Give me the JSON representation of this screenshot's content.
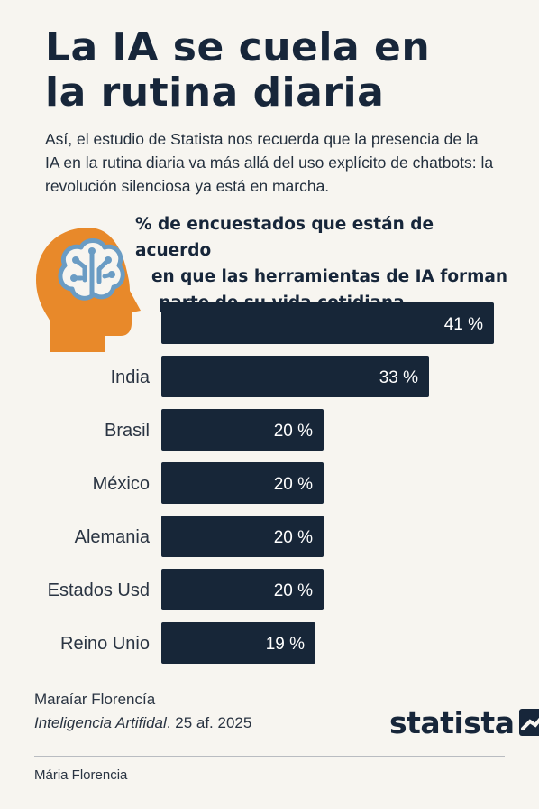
{
  "header": {
    "title_line1": "La IA se cuela en",
    "title_line2": "la rutina diaria",
    "subtitle": "Así, el estudio de Statista nos recuerda que la presencia de la IA en la rutina diaria va más allá del uso explícito de chatbots: la revolución silenciosa ya está en marcha."
  },
  "icon": {
    "name": "head-brain-circuit-icon",
    "head_color": "#e8892a",
    "brain_color": "#6a9cc4"
  },
  "chart_data": {
    "type": "bar",
    "orientation": "horizontal",
    "title_lines": [
      "% de encuestados que están de acuerdo",
      "en que las herramientas de IA forman",
      "parte de su vida cotidiana"
    ],
    "categories": [
      "",
      "India",
      "Brasil",
      "México",
      "Alemania",
      "Estados Usd",
      "Reino Unio"
    ],
    "values": [
      41,
      33,
      20,
      20,
      20,
      20,
      19
    ],
    "value_labels": [
      "41 %",
      "33 %",
      "20 %",
      "20 %",
      "20 %",
      "20 %",
      "19 %"
    ],
    "bar_color": "#172638",
    "grid": false,
    "legend": "none"
  },
  "source": {
    "author": "Maraíar Florencía",
    "line_italic": "Inteligencia Artifidal",
    "line_rest": ". 25 af. 2025"
  },
  "brand": {
    "name": "statista"
  },
  "footer": {
    "text": "Mária Florencia"
  }
}
